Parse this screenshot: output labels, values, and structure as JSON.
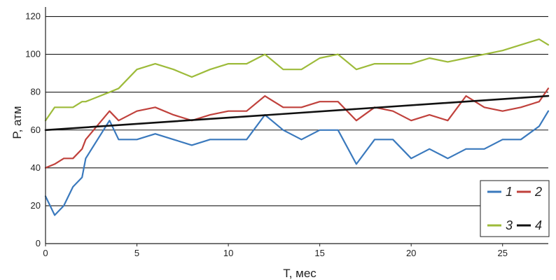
{
  "chart_data": {
    "type": "line",
    "xlabel": "T, мес",
    "ylabel": "P, атм",
    "xlim": [
      0,
      27.5
    ],
    "ylim": [
      0,
      125
    ],
    "x_ticks": [
      0,
      5,
      10,
      15,
      20,
      25
    ],
    "y_ticks": [
      0,
      20,
      40,
      60,
      80,
      100,
      120
    ],
    "grid": "horizontal",
    "legend_position": "bottom-right",
    "series": [
      {
        "name": "1",
        "color": "#3a79bd",
        "x": [
          0,
          0.5,
          1,
          1.5,
          2,
          2.2,
          3.5,
          4,
          5,
          6,
          7,
          8,
          9,
          10,
          11,
          12,
          13,
          14,
          15,
          16,
          17,
          18,
          19,
          20,
          21,
          22,
          23,
          24,
          25,
          26,
          27,
          27.5
        ],
        "y": [
          25,
          15,
          20,
          30,
          35,
          45,
          65,
          55,
          55,
          58,
          55,
          52,
          55,
          55,
          55,
          68,
          60,
          55,
          60,
          60,
          42,
          55,
          55,
          45,
          50,
          45,
          50,
          50,
          55,
          55,
          62,
          70
        ]
      },
      {
        "name": "2",
        "color": "#c0413c",
        "x": [
          0,
          0.5,
          1,
          1.5,
          2,
          2.2,
          3.5,
          4,
          5,
          6,
          7,
          8,
          9,
          10,
          11,
          12,
          13,
          14,
          15,
          16,
          17,
          18,
          19,
          20,
          21,
          22,
          23,
          24,
          25,
          26,
          27,
          27.5
        ],
        "y": [
          40,
          42,
          45,
          45,
          50,
          55,
          70,
          65,
          70,
          72,
          68,
          65,
          68,
          70,
          70,
          78,
          72,
          72,
          75,
          75,
          65,
          72,
          70,
          65,
          68,
          65,
          78,
          72,
          70,
          72,
          75,
          82
        ]
      },
      {
        "name": "3",
        "color": "#9dbb3a",
        "x": [
          0,
          0.5,
          1,
          1.5,
          2,
          2.2,
          3.5,
          4,
          5,
          6,
          7,
          8,
          9,
          10,
          11,
          12,
          13,
          14,
          15,
          16,
          17,
          18,
          19,
          20,
          21,
          22,
          23,
          24,
          25,
          26,
          27,
          27.5
        ],
        "y": [
          65,
          72,
          72,
          72,
          75,
          75,
          80,
          82,
          92,
          95,
          92,
          88,
          92,
          95,
          95,
          100,
          92,
          92,
          98,
          100,
          92,
          95,
          95,
          95,
          98,
          96,
          98,
          100,
          102,
          105,
          108,
          105
        ]
      },
      {
        "name": "4",
        "color": "#111111",
        "x": [
          0,
          27.5
        ],
        "y": [
          60,
          78
        ]
      }
    ]
  }
}
